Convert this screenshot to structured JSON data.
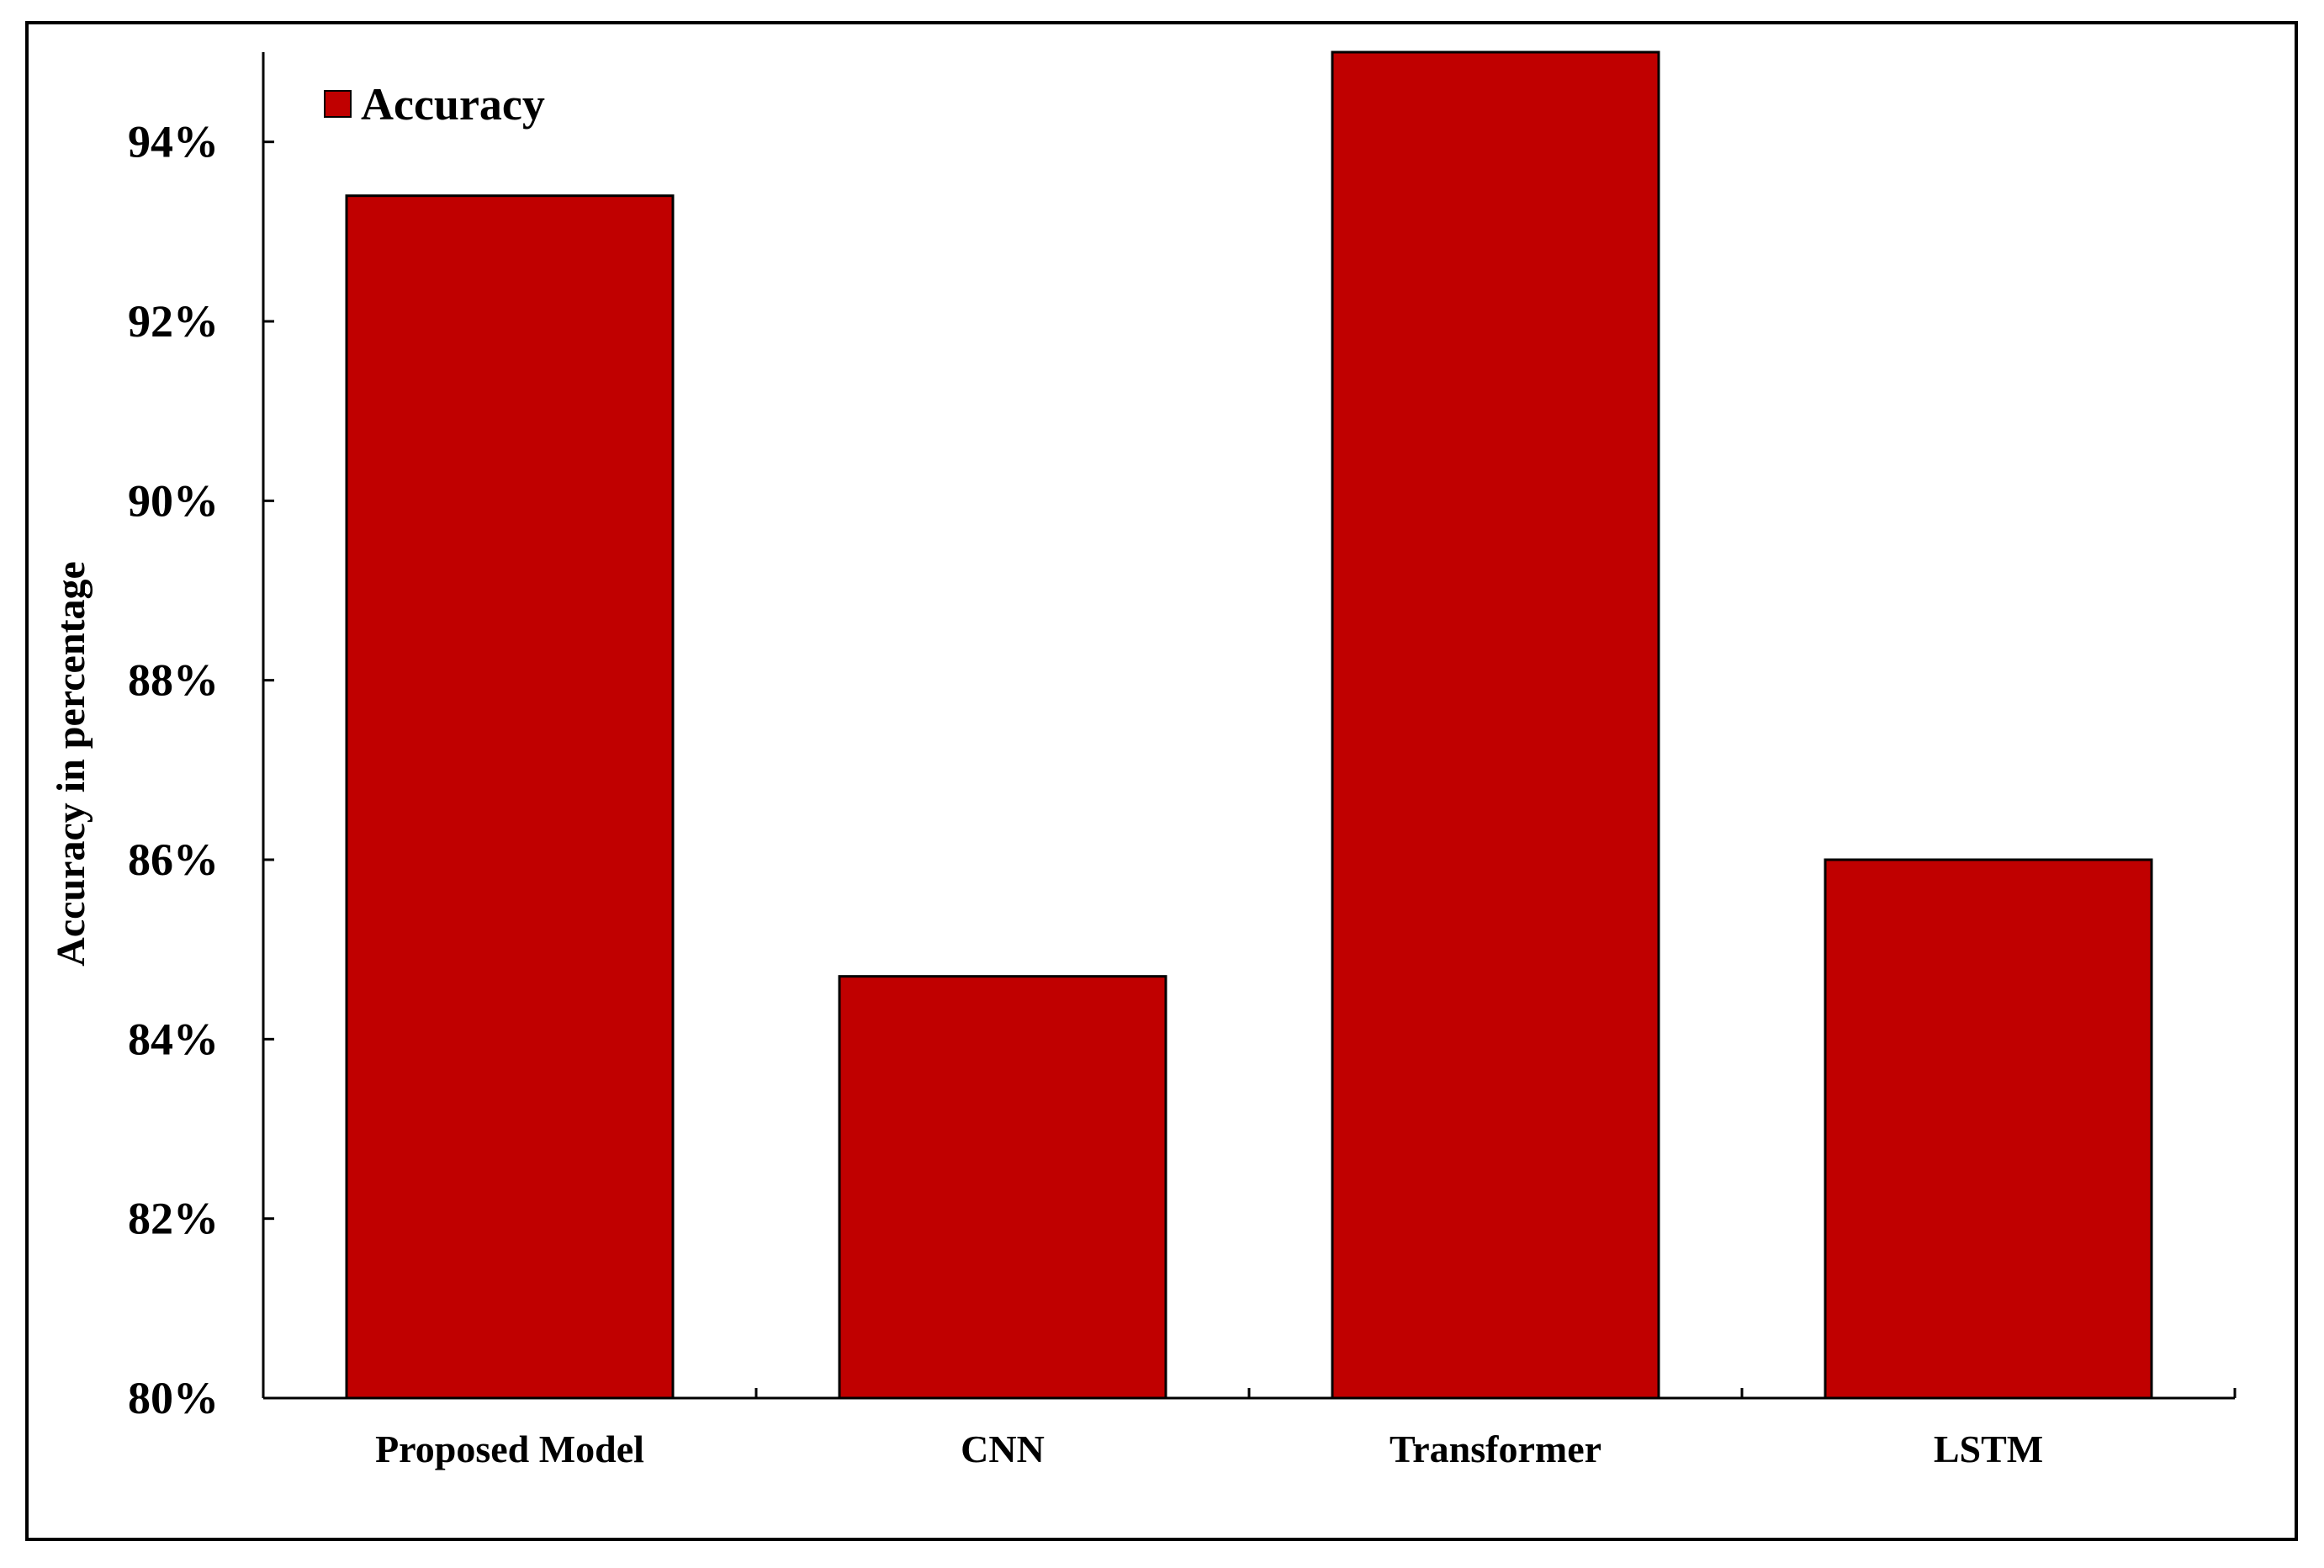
{
  "chart_data": {
    "type": "bar",
    "categories": [
      "Proposed Model",
      "CNN",
      "Transformer",
      "LSTM"
    ],
    "series": [
      {
        "name": "Accuracy",
        "values": [
          93.4,
          84.7,
          95.0,
          86.0
        ]
      }
    ],
    "ylabel": "Accuracy in percentage",
    "ylim": [
      80,
      95
    ],
    "yticks": [
      80,
      82,
      84,
      86,
      88,
      90,
      92,
      94
    ],
    "ytick_labels": [
      "80%",
      "82%",
      "84%",
      "86%",
      "88%",
      "90%",
      "92%",
      "94%"
    ],
    "legend_position": "top-left",
    "grid": false,
    "colors": {
      "bar": "#c00000",
      "bar_edge": "#000000",
      "legend_swatch": "#c00000"
    }
  }
}
